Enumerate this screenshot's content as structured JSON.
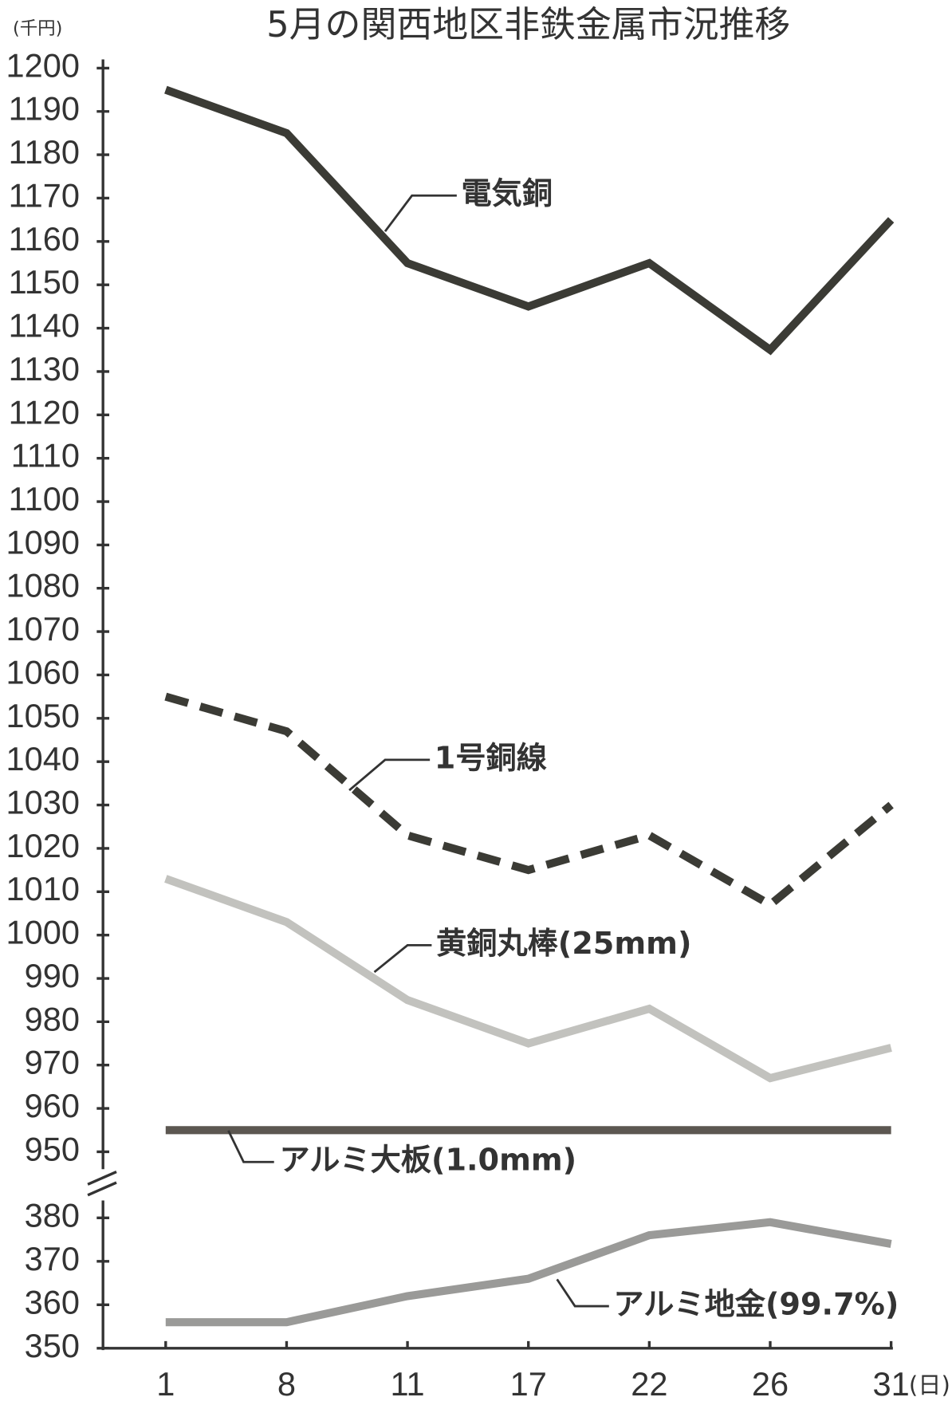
{
  "chart_data": {
    "type": "line",
    "title": "5月の関西地区非鉄金属市況推移",
    "y_unit": "(千円)",
    "x_unit": "(日)",
    "categories": [
      "1",
      "8",
      "11",
      "17",
      "22",
      "26",
      "31"
    ],
    "ylim": [
      946,
      1202
    ],
    "yticks": [
      950,
      960,
      970,
      980,
      990,
      1000,
      1010,
      1020,
      1030,
      1040,
      1050,
      1060,
      1070,
      1080,
      1090,
      1100,
      1110,
      1120,
      1130,
      1140,
      1150,
      1160,
      1170,
      1180,
      1190,
      1200
    ],
    "y2lim": [
      350,
      384
    ],
    "y2ticks": [
      350,
      360,
      370,
      380
    ],
    "series": [
      {
        "name": "電気銅",
        "color": "#3b3b35",
        "values": [
          1195,
          1185,
          1155,
          1145,
          1155,
          1135,
          1165
        ]
      },
      {
        "name": "1号銅線",
        "color": "#3b3b35",
        "dashed": true,
        "values": [
          1055,
          1047,
          1023,
          1015,
          1023,
          1007,
          1030
        ]
      },
      {
        "name": "黄銅丸棒(25mm)",
        "color": "#c2c2be",
        "values": [
          1013,
          1003,
          985,
          975,
          983,
          967,
          974
        ]
      },
      {
        "name": "アルミ大板(1.0mm)",
        "color": "#5c5751",
        "values": [
          955,
          955,
          955,
          955,
          955,
          955,
          955
        ]
      },
      {
        "name": "アルミ地金(99.7%)",
        "color": "#9a9a98",
        "axis": "y2",
        "values": [
          356,
          356,
          362,
          366,
          376,
          379,
          374
        ]
      }
    ]
  }
}
